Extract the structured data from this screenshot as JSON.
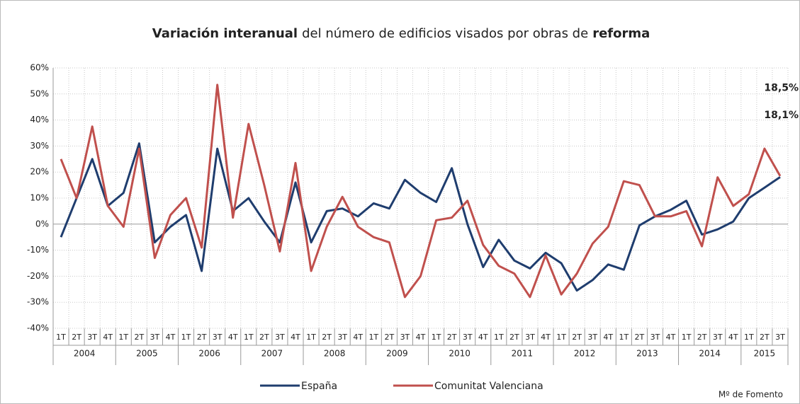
{
  "chart_data": {
    "type": "line",
    "title": [
      "Variación interanual",
      "del número de edificios visados por obras de",
      "reforma"
    ],
    "categories": [
      "1T",
      "2T",
      "3T",
      "4T",
      "1T",
      "2T",
      "3T",
      "4T",
      "1T",
      "2T",
      "3T",
      "4T",
      "1T",
      "2T",
      "3T",
      "4T",
      "1T",
      "2T",
      "3T",
      "4T",
      "1T",
      "2T",
      "3T",
      "4T",
      "1T",
      "2T",
      "3T",
      "4T",
      "1T",
      "2T",
      "3T",
      "4T",
      "1T",
      "2T",
      "3T",
      "4T",
      "1T",
      "2T",
      "3T",
      "4T",
      "1T",
      "2T",
      "3T",
      "4T",
      "1T",
      "2T",
      "3T"
    ],
    "years": [
      "2004",
      "2005",
      "2006",
      "2007",
      "2008",
      "2009",
      "2010",
      "2011",
      "2012",
      "2013",
      "2014",
      "2015"
    ],
    "series": [
      {
        "name": "España",
        "color": "#1f3d6e",
        "end_label": "18,1%",
        "label_color": "#44546a",
        "values": [
          -5,
          10,
          25,
          7,
          12,
          31,
          -7,
          -1,
          3.5,
          -18,
          29,
          5,
          10,
          1,
          -7,
          16,
          -7,
          5,
          6,
          3,
          8,
          6,
          17,
          12,
          8.5,
          21.5,
          0,
          -16.5,
          -6,
          -14,
          -17,
          -11,
          -15,
          -25.5,
          -21.5,
          -15.5,
          -17.5,
          -0.5,
          3,
          5.5,
          9,
          -4,
          -2,
          1,
          10,
          14,
          18.1
        ]
      },
      {
        "name": "Comunitat Valenciana",
        "color": "#c0504d",
        "end_label": "18,5%",
        "label_color": "#9c4a1a",
        "values": [
          25,
          10,
          37.5,
          7,
          -1,
          29,
          -13,
          3.5,
          10,
          -9,
          53.5,
          2.5,
          38.5,
          15,
          -10.5,
          23.5,
          -18,
          -1,
          10.5,
          -1,
          -5,
          -7,
          -28,
          -20,
          1.5,
          2.5,
          9,
          -8,
          -16,
          -19,
          -28,
          -12,
          -27,
          -19,
          -7.5,
          -1,
          16.5,
          15,
          3,
          3,
          5,
          -8.5,
          18,
          7,
          11.5,
          29,
          18.5
        ]
      }
    ],
    "ylim": [
      -40,
      60
    ],
    "yticks": [
      {
        "value": -40,
        "label": "-40%"
      },
      {
        "value": -30,
        "label": "-30%"
      },
      {
        "value": -20,
        "label": "-20%"
      },
      {
        "value": -10,
        "label": "-10%"
      },
      {
        "value": 0,
        "label": "0%"
      },
      {
        "value": 10,
        "label": "10%"
      },
      {
        "value": 20,
        "label": "20%"
      },
      {
        "value": 30,
        "label": "30%"
      },
      {
        "value": 40,
        "label": "40%"
      },
      {
        "value": 50,
        "label": "50%"
      },
      {
        "value": 60,
        "label": "60%"
      }
    ],
    "grid": true,
    "legend": "bottom",
    "source": "Mº de Fomento"
  }
}
